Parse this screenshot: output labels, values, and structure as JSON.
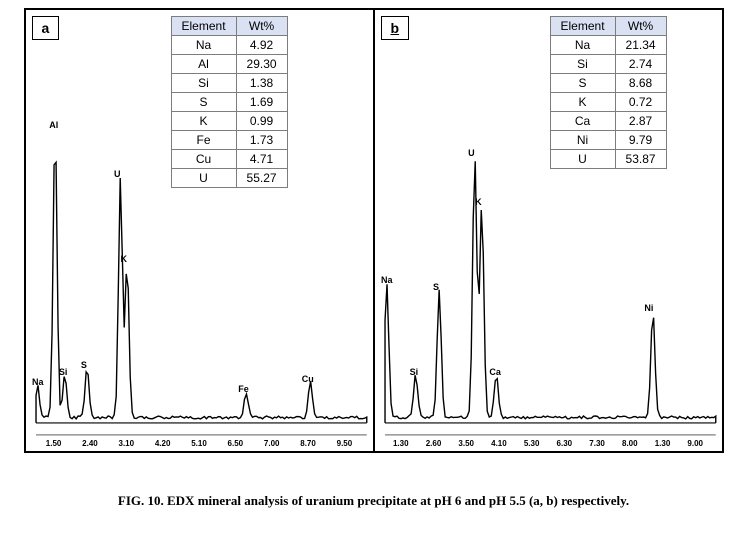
{
  "panel_a": {
    "label": "a",
    "table": {
      "headers": [
        "Element",
        "Wt%"
      ],
      "rows": [
        [
          "Na",
          "4.92"
        ],
        [
          "Al",
          "29.30"
        ],
        [
          "Si",
          "1.38"
        ],
        [
          "S",
          "1.69"
        ],
        [
          "K",
          "0.99"
        ],
        [
          "Fe",
          "1.73"
        ],
        [
          "Cu",
          "4.71"
        ],
        [
          "U",
          "55.27"
        ]
      ],
      "header_bg": "#d9e1f2",
      "border_color": "#7d7d7d"
    },
    "spectrum": {
      "stroke": "#000000",
      "stroke_width": 1.4,
      "xlim": [
        1.0,
        9.5
      ],
      "axis_ticks": [
        "1.50",
        "2.40",
        "3.10",
        "4.20",
        "5.10",
        "6.50",
        "7.00",
        "8.70",
        "9.50"
      ],
      "peaks": [
        {
          "label": "Na",
          "x": 1.04,
          "h": 0.09
        },
        {
          "label": "Al",
          "x": 1.49,
          "h": 0.82
        },
        {
          "label": "Si",
          "x": 1.74,
          "h": 0.12
        },
        {
          "label": "S",
          "x": 2.31,
          "h": 0.14
        },
        {
          "label": "U",
          "x": 3.17,
          "h": 0.68
        },
        {
          "label": "K",
          "x": 3.34,
          "h": 0.44
        },
        {
          "label": "Fe",
          "x": 6.4,
          "h": 0.07
        },
        {
          "label": "Cu",
          "x": 8.05,
          "h": 0.1
        }
      ]
    }
  },
  "panel_b": {
    "label": "b",
    "table": {
      "headers": [
        "Element",
        "Wt%"
      ],
      "rows": [
        [
          "Na",
          "21.34"
        ],
        [
          "Si",
          "2.74"
        ],
        [
          "S",
          "8.68"
        ],
        [
          "K",
          "0.72"
        ],
        [
          "Ca",
          "2.87"
        ],
        [
          "Ni",
          "9.79"
        ],
        [
          "U",
          "53.87"
        ]
      ],
      "header_bg": "#d9e1f2",
      "border_color": "#7d7d7d"
    },
    "spectrum": {
      "stroke": "#000000",
      "stroke_width": 1.4,
      "xlim": [
        1.0,
        9.0
      ],
      "axis_ticks": [
        "1.30",
        "2.60",
        "3.50",
        "4.10",
        "5.30",
        "6.30",
        "7.30",
        "8.00",
        "1.30",
        "9.00"
      ],
      "peaks": [
        {
          "label": "Na",
          "x": 1.04,
          "h": 0.38
        },
        {
          "label": "Si",
          "x": 1.74,
          "h": 0.12
        },
        {
          "label": "S",
          "x": 2.31,
          "h": 0.36
        },
        {
          "label": "U",
          "x": 3.17,
          "h": 0.74
        },
        {
          "label": "K",
          "x": 3.34,
          "h": 0.6
        },
        {
          "label": "Ca",
          "x": 3.69,
          "h": 0.12
        },
        {
          "label": "Ni",
          "x": 7.48,
          "h": 0.3
        }
      ]
    }
  },
  "caption": {
    "prefix": "FIG. 10. ",
    "text": "EDX mineral analysis of uranium precipitate at pH 6 and pH 5.5 (a, b) respectively."
  },
  "colors": {
    "border": "#000000",
    "background": "#ffffff"
  }
}
